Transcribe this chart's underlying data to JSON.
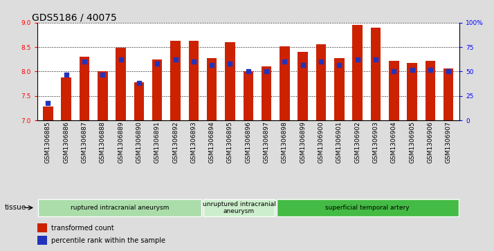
{
  "title": "GDS5186 / 40075",
  "samples": [
    "GSM1306885",
    "GSM1306886",
    "GSM1306887",
    "GSM1306888",
    "GSM1306889",
    "GSM1306890",
    "GSM1306891",
    "GSM1306892",
    "GSM1306893",
    "GSM1306894",
    "GSM1306895",
    "GSM1306896",
    "GSM1306897",
    "GSM1306898",
    "GSM1306899",
    "GSM1306900",
    "GSM1306901",
    "GSM1306902",
    "GSM1306903",
    "GSM1306904",
    "GSM1306905",
    "GSM1306906",
    "GSM1306907"
  ],
  "red_values": [
    7.28,
    7.88,
    8.3,
    8.0,
    8.49,
    7.78,
    8.25,
    8.63,
    8.63,
    8.28,
    8.6,
    8.0,
    8.1,
    8.52,
    8.4,
    8.56,
    8.28,
    8.96,
    8.9,
    8.22,
    8.17,
    8.22,
    8.07
  ],
  "blue_values": [
    18,
    47,
    60,
    47,
    62,
    38,
    58,
    62,
    60,
    57,
    58,
    50,
    50,
    60,
    57,
    60,
    57,
    62,
    62,
    50,
    52,
    52,
    50
  ],
  "ylim_left": [
    7,
    9
  ],
  "ylim_right": [
    0,
    100
  ],
  "yticks_left": [
    7,
    7.5,
    8,
    8.5,
    9
  ],
  "yticks_right": [
    0,
    25,
    50,
    75,
    100
  ],
  "yticklabels_right": [
    "0",
    "25",
    "50",
    "75",
    "100%"
  ],
  "bar_color": "#cc2200",
  "dot_color": "#2233bb",
  "group_colors": [
    "#aaddaa",
    "#cceecc",
    "#44bb44"
  ],
  "groups": [
    {
      "label": "ruptured intracranial aneurysm",
      "start": 0,
      "end": 9
    },
    {
      "label": "unruptured intracranial\naneurysm",
      "start": 9,
      "end": 13
    },
    {
      "label": "superficial temporal artery",
      "start": 13,
      "end": 23
    }
  ],
  "tissue_label": "tissue",
  "legend1_label": "transformed count",
  "legend2_label": "percentile rank within the sample",
  "bg_color": "#dddddd",
  "plot_bg": "#ffffff",
  "title_fontsize": 10,
  "tick_fontsize": 6.5,
  "bar_width": 0.55
}
